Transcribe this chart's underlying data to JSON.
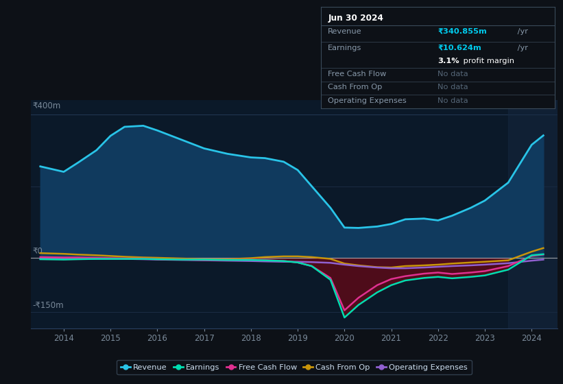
{
  "bg_color": "#0d1117",
  "plot_bg": "#0b1929",
  "ylabel_400": "₹400m",
  "ylabel_0": "₹0",
  "ylabel_neg150": "-₹150m",
  "years": [
    2013.5,
    2014.0,
    2014.3,
    2014.7,
    2015.0,
    2015.3,
    2015.7,
    2016.0,
    2016.5,
    2017.0,
    2017.5,
    2018.0,
    2018.3,
    2018.7,
    2019.0,
    2019.3,
    2019.7,
    2020.0,
    2020.3,
    2020.7,
    2021.0,
    2021.3,
    2021.7,
    2022.0,
    2022.3,
    2022.7,
    2023.0,
    2023.5,
    2024.0,
    2024.25
  ],
  "revenue": [
    255,
    240,
    265,
    300,
    340,
    365,
    368,
    355,
    330,
    305,
    290,
    280,
    278,
    268,
    245,
    200,
    140,
    85,
    84,
    88,
    95,
    108,
    110,
    105,
    118,
    140,
    160,
    210,
    315,
    341
  ],
  "earnings": [
    -3,
    -4,
    -3,
    -2,
    -2,
    -2,
    -2,
    -3,
    -4,
    -4,
    -5,
    -5,
    -6,
    -8,
    -12,
    -22,
    -60,
    -165,
    -130,
    -95,
    -75,
    -62,
    -55,
    -52,
    -56,
    -52,
    -48,
    -32,
    8,
    11
  ],
  "free_cash_flow": [
    3,
    2,
    2,
    1,
    0,
    -1,
    -1,
    -3,
    -4,
    -5,
    -5,
    -4,
    -5,
    -8,
    -12,
    -22,
    -55,
    -145,
    -110,
    -75,
    -58,
    -50,
    -43,
    -40,
    -44,
    -40,
    -36,
    -22,
    6,
    10
  ],
  "cash_from_op": [
    14,
    12,
    10,
    8,
    6,
    4,
    2,
    1,
    -1,
    -3,
    -3,
    0,
    3,
    5,
    5,
    3,
    -2,
    -15,
    -20,
    -25,
    -26,
    -22,
    -20,
    -18,
    -15,
    -12,
    -10,
    -6,
    18,
    28
  ],
  "operating_expenses": [
    -2,
    -2,
    -2,
    -2,
    -2,
    -2,
    -3,
    -4,
    -5,
    -6,
    -7,
    -8,
    -9,
    -10,
    -10,
    -11,
    -13,
    -18,
    -22,
    -26,
    -28,
    -28,
    -26,
    -24,
    -22,
    -20,
    -18,
    -14,
    -7,
    -4
  ],
  "revenue_color": "#29c4e8",
  "revenue_fill": "#103a5e",
  "earnings_color": "#00ddb0",
  "earnings_fill_neg": "#5a0a18",
  "free_cash_flow_color": "#e03090",
  "cash_from_op_color": "#c8950a",
  "operating_expenses_color": "#9060d0",
  "info_title": "Jun 30 2024",
  "info_revenue_label": "Revenue",
  "info_revenue_value": "₹340.855m",
  "info_earnings_label": "Earnings",
  "info_earnings_value": "₹10.624m",
  "info_margin_bold": "3.1%",
  "info_margin_text": " profit margin",
  "info_fcf_label": "Free Cash Flow",
  "info_cfo_label": "Cash From Op",
  "info_opex_label": "Operating Expenses",
  "info_nodata": "No data",
  "ylim_min": -195,
  "ylim_max": 440,
  "xlim_min": 2013.3,
  "xlim_max": 2024.55,
  "xticks": [
    2014,
    2015,
    2016,
    2017,
    2018,
    2019,
    2020,
    2021,
    2022,
    2023,
    2024
  ],
  "legend_labels": [
    "Revenue",
    "Earnings",
    "Free Cash Flow",
    "Cash From Op",
    "Operating Expenses"
  ]
}
